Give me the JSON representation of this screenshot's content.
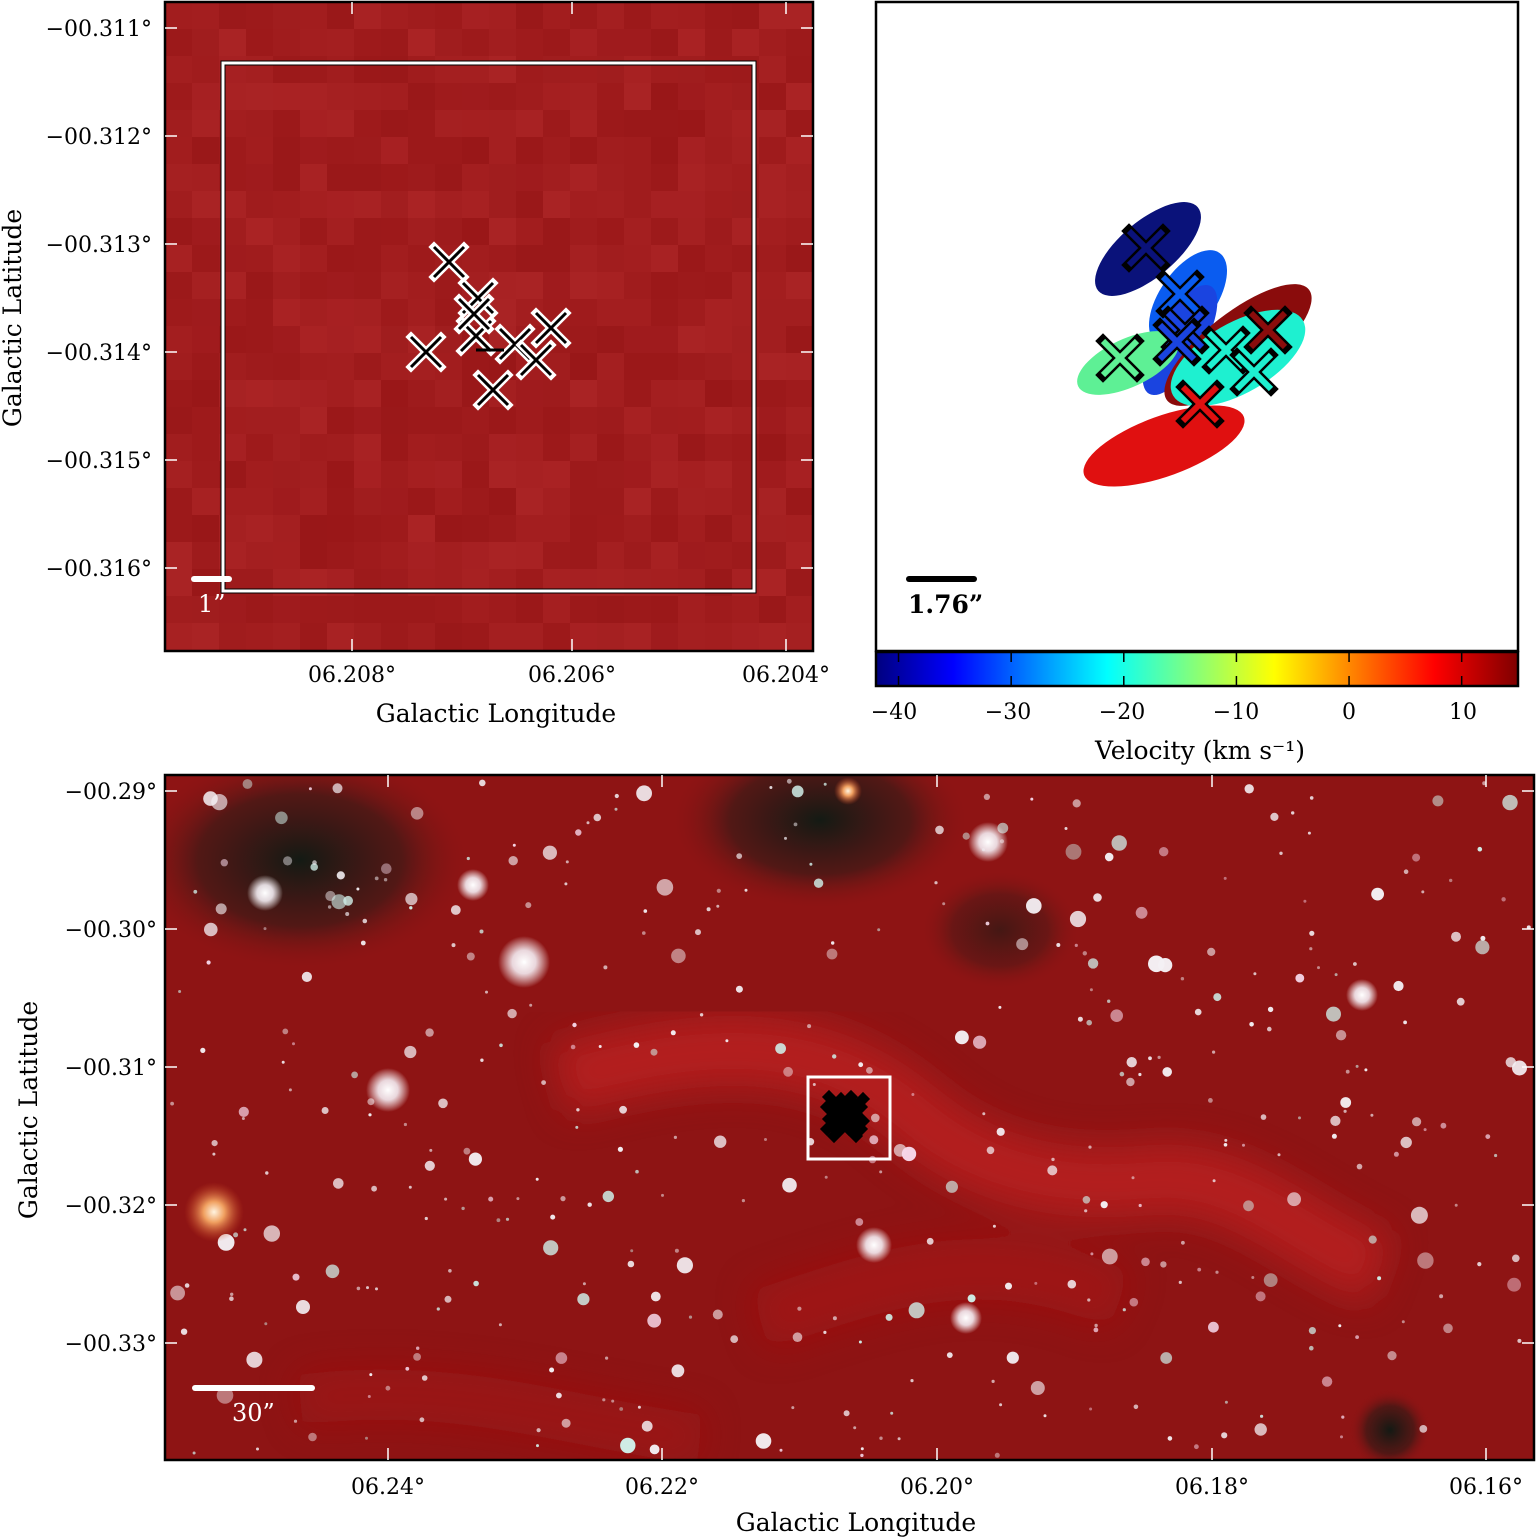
{
  "top_left": {
    "ylabel": "Galactic Latitude",
    "xlabel": "Galactic Longitude",
    "y_ticks": [
      "−00.311°",
      "−00.312°",
      "−00.313°",
      "−00.314°",
      "−00.315°",
      "−00.316°"
    ],
    "x_ticks": [
      "06.208°",
      "06.206°",
      "06.204°"
    ],
    "scale_label": "1”",
    "colors": {
      "background": "#9e1a1a",
      "frame": "#ffffff"
    }
  },
  "top_right": {
    "scale_label": "1.76”",
    "colorbar": {
      "ticks": [
        "−40",
        "−30",
        "−20",
        "−10",
        "0",
        "10"
      ],
      "tick_values": [
        -40,
        -30,
        -20,
        -10,
        0,
        10
      ],
      "range": [
        -42,
        15
      ],
      "label": "Velocity (km s⁻¹)"
    },
    "ellipse_colors": [
      "#0a127a",
      "#0a5cf0",
      "#1a44e0",
      "#5ef095",
      "#e01010",
      "#8a0c0c",
      "#1ef0d0"
    ]
  },
  "bottom": {
    "ylabel": "Galactic Latitude",
    "xlabel": "Galactic Longitude",
    "y_ticks": [
      "−00.29°",
      "−00.30°",
      "−00.31°",
      "−00.32°",
      "−00.33°"
    ],
    "x_ticks": [
      "06.24°",
      "06.22°",
      "06.20°",
      "06.18°",
      "06.16°"
    ],
    "scale_label": "30”",
    "colors": {
      "background": "#8e1414",
      "nebula": "#c42020"
    }
  }
}
